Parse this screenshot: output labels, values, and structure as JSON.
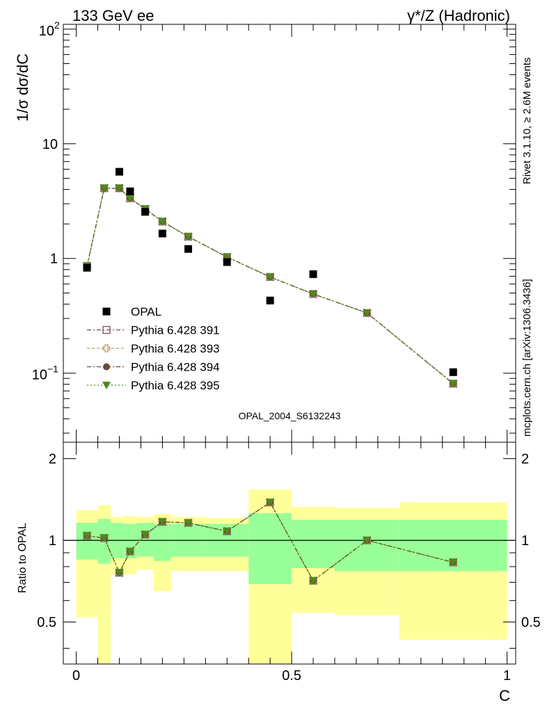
{
  "header": {
    "left": "133 GeV ee",
    "right": "γ*/Z (Hadronic)"
  },
  "side_labels": {
    "top": "Rivet 3.1.10, ≥ 2.6M events",
    "bottom": "mcplots.cern.ch [arXiv:1306.3436]"
  },
  "watermark": "OPAL_2004_S6132243",
  "colors": {
    "band_inner": "#99ff99",
    "band_outer": "#ffff99",
    "data": "#000000",
    "p391": "#7c4a64",
    "p393": "#b0a060",
    "p394": "#6b4a30",
    "p395": "#4d8a1e"
  },
  "chart_data": [
    {
      "type": "scatter",
      "ylabel": "1/σ dσ/dC",
      "yscale": "log",
      "xlim": [
        -0.03,
        1.02
      ],
      "ylim": [
        0.025,
        110
      ],
      "y_ticks": [
        {
          "value": 100,
          "label": "10",
          "sup": "2"
        },
        {
          "value": 10,
          "label": "10",
          "sup": ""
        },
        {
          "value": 1,
          "label": "1",
          "sup": ""
        },
        {
          "value": 0.1,
          "label": "10",
          "sup": "−1"
        }
      ],
      "legend_position": "lower-left",
      "legend": [
        {
          "key": "data",
          "label": "OPAL"
        },
        {
          "key": "p391",
          "label": "Pythia 6.428 391"
        },
        {
          "key": "p393",
          "label": "Pythia 6.428 393"
        },
        {
          "key": "p394",
          "label": "Pythia 6.428 394"
        },
        {
          "key": "p395",
          "label": "Pythia 6.428 395"
        }
      ],
      "data": {
        "x": [
          0.025,
          0.1,
          0.125,
          0.16,
          0.2,
          0.26,
          0.35,
          0.45,
          0.55,
          0.875
        ],
        "y": [
          0.83,
          5.7,
          3.85,
          2.55,
          1.65,
          1.21,
          0.93,
          0.43,
          0.73,
          0.102
        ]
      },
      "mc": {
        "x": [
          0.025,
          0.065,
          0.1,
          0.125,
          0.16,
          0.2,
          0.26,
          0.35,
          0.45,
          0.55,
          0.675,
          0.875
        ],
        "y": [
          0.86,
          4.1,
          4.1,
          3.35,
          2.7,
          2.1,
          1.55,
          1.03,
          0.69,
          0.49,
          0.335,
          0.081
        ]
      }
    },
    {
      "type": "line",
      "ylabel": "Ratio to OPAL",
      "xlabel": "C",
      "xlim": [
        -0.03,
        1.02
      ],
      "ylim": [
        0.35,
        2.3
      ],
      "y_ticks": [
        0.5,
        1,
        2
      ],
      "x_ticks": [
        0,
        0.5,
        1
      ],
      "reference_line": 1,
      "bands": [
        {
          "x0": 0.0,
          "x1": 0.05,
          "inner": [
            0.85,
            1.16
          ],
          "outer": [
            0.52,
            1.29
          ]
        },
        {
          "x0": 0.05,
          "x1": 0.08,
          "inner": [
            0.82,
            1.2
          ],
          "outer": [
            0.35,
            1.35
          ]
        },
        {
          "x0": 0.08,
          "x1": 0.11,
          "inner": [
            0.86,
            1.16
          ],
          "outer": [
            0.75,
            1.22
          ]
        },
        {
          "x0": 0.11,
          "x1": 0.14,
          "inner": [
            0.86,
            1.15
          ],
          "outer": [
            0.75,
            1.23
          ]
        },
        {
          "x0": 0.14,
          "x1": 0.18,
          "inner": [
            0.87,
            1.16
          ],
          "outer": [
            0.78,
            1.22
          ]
        },
        {
          "x0": 0.18,
          "x1": 0.22,
          "inner": [
            0.84,
            1.15
          ],
          "outer": [
            0.65,
            1.25
          ]
        },
        {
          "x0": 0.22,
          "x1": 0.3,
          "inner": [
            0.87,
            1.15
          ],
          "outer": [
            0.77,
            1.22
          ]
        },
        {
          "x0": 0.3,
          "x1": 0.4,
          "inner": [
            0.87,
            1.15
          ],
          "outer": [
            0.77,
            1.21
          ]
        },
        {
          "x0": 0.4,
          "x1": 0.5,
          "inner": [
            0.69,
            1.26
          ],
          "outer": [
            0.35,
            1.54
          ]
        },
        {
          "x0": 0.5,
          "x1": 0.6,
          "inner": [
            0.79,
            1.19
          ],
          "outer": [
            0.54,
            1.33
          ]
        },
        {
          "x0": 0.6,
          "x1": 0.75,
          "inner": [
            0.77,
            1.19
          ],
          "outer": [
            0.53,
            1.32
          ]
        },
        {
          "x0": 0.75,
          "x1": 1.0,
          "inner": [
            0.77,
            1.19
          ],
          "outer": [
            0.43,
            1.38
          ]
        }
      ],
      "mc": {
        "x": [
          0.025,
          0.065,
          0.1,
          0.125,
          0.16,
          0.2,
          0.26,
          0.35,
          0.45,
          0.55,
          0.675,
          0.875
        ],
        "y": [
          1.04,
          1.02,
          0.76,
          0.91,
          1.05,
          1.17,
          1.16,
          1.08,
          1.38,
          0.71,
          1.0,
          0.83
        ]
      }
    }
  ]
}
